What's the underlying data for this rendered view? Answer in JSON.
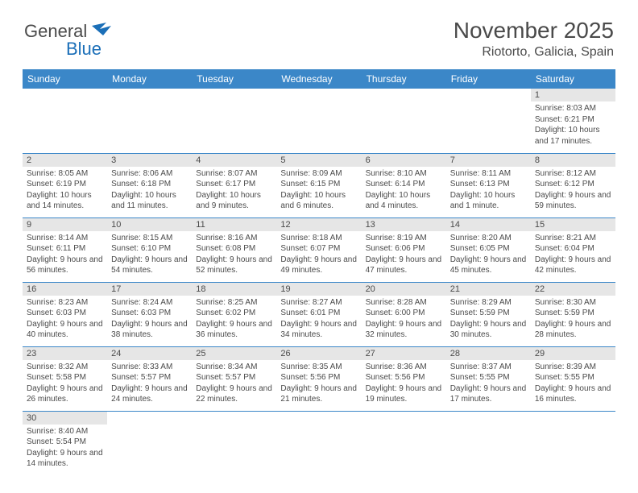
{
  "logo": {
    "general": "General",
    "blue": "Blue"
  },
  "title": "November 2025",
  "location": "Riotorto, Galicia, Spain",
  "colors": {
    "header_bg": "#3b87c8",
    "header_text": "#ffffff",
    "daynum_bg": "#e6e6e6",
    "text": "#4a4a4a",
    "rule": "#3b87c8"
  },
  "dayHeaders": [
    "Sunday",
    "Monday",
    "Tuesday",
    "Wednesday",
    "Thursday",
    "Friday",
    "Saturday"
  ],
  "weeks": [
    [
      null,
      null,
      null,
      null,
      null,
      null,
      {
        "n": "1",
        "sr": "Sunrise: 8:03 AM",
        "ss": "Sunset: 6:21 PM",
        "dl": "Daylight: 10 hours and 17 minutes."
      }
    ],
    [
      {
        "n": "2",
        "sr": "Sunrise: 8:05 AM",
        "ss": "Sunset: 6:19 PM",
        "dl": "Daylight: 10 hours and 14 minutes."
      },
      {
        "n": "3",
        "sr": "Sunrise: 8:06 AM",
        "ss": "Sunset: 6:18 PM",
        "dl": "Daylight: 10 hours and 11 minutes."
      },
      {
        "n": "4",
        "sr": "Sunrise: 8:07 AM",
        "ss": "Sunset: 6:17 PM",
        "dl": "Daylight: 10 hours and 9 minutes."
      },
      {
        "n": "5",
        "sr": "Sunrise: 8:09 AM",
        "ss": "Sunset: 6:15 PM",
        "dl": "Daylight: 10 hours and 6 minutes."
      },
      {
        "n": "6",
        "sr": "Sunrise: 8:10 AM",
        "ss": "Sunset: 6:14 PM",
        "dl": "Daylight: 10 hours and 4 minutes."
      },
      {
        "n": "7",
        "sr": "Sunrise: 8:11 AM",
        "ss": "Sunset: 6:13 PM",
        "dl": "Daylight: 10 hours and 1 minute."
      },
      {
        "n": "8",
        "sr": "Sunrise: 8:12 AM",
        "ss": "Sunset: 6:12 PM",
        "dl": "Daylight: 9 hours and 59 minutes."
      }
    ],
    [
      {
        "n": "9",
        "sr": "Sunrise: 8:14 AM",
        "ss": "Sunset: 6:11 PM",
        "dl": "Daylight: 9 hours and 56 minutes."
      },
      {
        "n": "10",
        "sr": "Sunrise: 8:15 AM",
        "ss": "Sunset: 6:10 PM",
        "dl": "Daylight: 9 hours and 54 minutes."
      },
      {
        "n": "11",
        "sr": "Sunrise: 8:16 AM",
        "ss": "Sunset: 6:08 PM",
        "dl": "Daylight: 9 hours and 52 minutes."
      },
      {
        "n": "12",
        "sr": "Sunrise: 8:18 AM",
        "ss": "Sunset: 6:07 PM",
        "dl": "Daylight: 9 hours and 49 minutes."
      },
      {
        "n": "13",
        "sr": "Sunrise: 8:19 AM",
        "ss": "Sunset: 6:06 PM",
        "dl": "Daylight: 9 hours and 47 minutes."
      },
      {
        "n": "14",
        "sr": "Sunrise: 8:20 AM",
        "ss": "Sunset: 6:05 PM",
        "dl": "Daylight: 9 hours and 45 minutes."
      },
      {
        "n": "15",
        "sr": "Sunrise: 8:21 AM",
        "ss": "Sunset: 6:04 PM",
        "dl": "Daylight: 9 hours and 42 minutes."
      }
    ],
    [
      {
        "n": "16",
        "sr": "Sunrise: 8:23 AM",
        "ss": "Sunset: 6:03 PM",
        "dl": "Daylight: 9 hours and 40 minutes."
      },
      {
        "n": "17",
        "sr": "Sunrise: 8:24 AM",
        "ss": "Sunset: 6:03 PM",
        "dl": "Daylight: 9 hours and 38 minutes."
      },
      {
        "n": "18",
        "sr": "Sunrise: 8:25 AM",
        "ss": "Sunset: 6:02 PM",
        "dl": "Daylight: 9 hours and 36 minutes."
      },
      {
        "n": "19",
        "sr": "Sunrise: 8:27 AM",
        "ss": "Sunset: 6:01 PM",
        "dl": "Daylight: 9 hours and 34 minutes."
      },
      {
        "n": "20",
        "sr": "Sunrise: 8:28 AM",
        "ss": "Sunset: 6:00 PM",
        "dl": "Daylight: 9 hours and 32 minutes."
      },
      {
        "n": "21",
        "sr": "Sunrise: 8:29 AM",
        "ss": "Sunset: 5:59 PM",
        "dl": "Daylight: 9 hours and 30 minutes."
      },
      {
        "n": "22",
        "sr": "Sunrise: 8:30 AM",
        "ss": "Sunset: 5:59 PM",
        "dl": "Daylight: 9 hours and 28 minutes."
      }
    ],
    [
      {
        "n": "23",
        "sr": "Sunrise: 8:32 AM",
        "ss": "Sunset: 5:58 PM",
        "dl": "Daylight: 9 hours and 26 minutes."
      },
      {
        "n": "24",
        "sr": "Sunrise: 8:33 AM",
        "ss": "Sunset: 5:57 PM",
        "dl": "Daylight: 9 hours and 24 minutes."
      },
      {
        "n": "25",
        "sr": "Sunrise: 8:34 AM",
        "ss": "Sunset: 5:57 PM",
        "dl": "Daylight: 9 hours and 22 minutes."
      },
      {
        "n": "26",
        "sr": "Sunrise: 8:35 AM",
        "ss": "Sunset: 5:56 PM",
        "dl": "Daylight: 9 hours and 21 minutes."
      },
      {
        "n": "27",
        "sr": "Sunrise: 8:36 AM",
        "ss": "Sunset: 5:56 PM",
        "dl": "Daylight: 9 hours and 19 minutes."
      },
      {
        "n": "28",
        "sr": "Sunrise: 8:37 AM",
        "ss": "Sunset: 5:55 PM",
        "dl": "Daylight: 9 hours and 17 minutes."
      },
      {
        "n": "29",
        "sr": "Sunrise: 8:39 AM",
        "ss": "Sunset: 5:55 PM",
        "dl": "Daylight: 9 hours and 16 minutes."
      }
    ],
    [
      {
        "n": "30",
        "sr": "Sunrise: 8:40 AM",
        "ss": "Sunset: 5:54 PM",
        "dl": "Daylight: 9 hours and 14 minutes."
      },
      null,
      null,
      null,
      null,
      null,
      null
    ]
  ]
}
